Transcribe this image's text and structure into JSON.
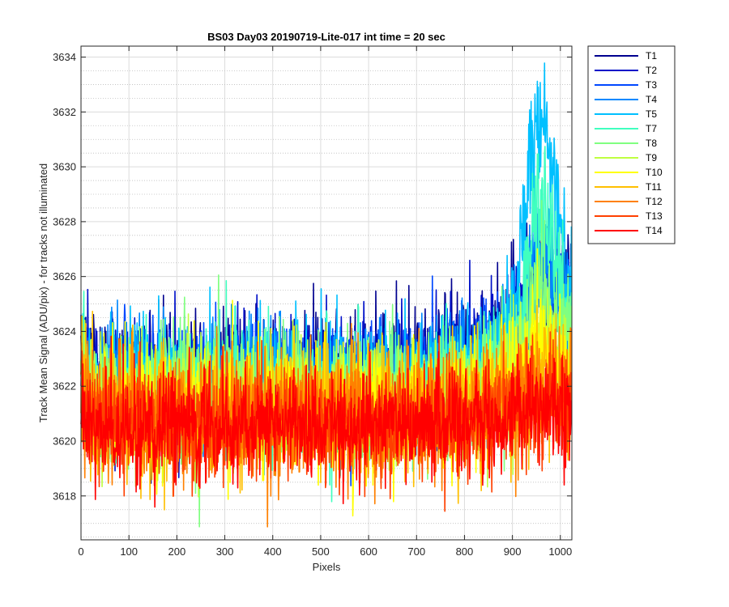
{
  "chart_data": {
    "type": "line",
    "title": "BS03 Day03 20190719-Lite-017 int time = 20 sec",
    "xlabel": "Pixels",
    "ylabel": "Track Mean Signal (ADU/pix) - for tracks not illuminated",
    "xlim": [
      0,
      1024
    ],
    "ylim": [
      3616.4,
      3634.4
    ],
    "xticks": [
      0,
      100,
      200,
      300,
      400,
      500,
      600,
      700,
      800,
      900,
      1000
    ],
    "yticks": [
      3618,
      3620,
      3622,
      3624,
      3626,
      3628,
      3630,
      3632,
      3634
    ],
    "grid": "major and minor",
    "legend_position": "outside-top-right",
    "series": [
      {
        "name": "T1",
        "color": "#00008f",
        "base": 3622.4,
        "amplitude": 1.5,
        "edge_rise": 3.0,
        "peak_rise": 1.2
      },
      {
        "name": "T2",
        "color": "#0010c8",
        "base": 3622.3,
        "amplitude": 1.5,
        "edge_rise": 2.5,
        "peak_rise": 1.5
      },
      {
        "name": "T3",
        "color": "#0048ff",
        "base": 3622.1,
        "amplitude": 1.5,
        "edge_rise": 2.2,
        "peak_rise": 2.0
      },
      {
        "name": "T4",
        "color": "#0088ff",
        "base": 3622.0,
        "amplitude": 1.5,
        "edge_rise": 2.0,
        "peak_rise": 3.0
      },
      {
        "name": "T5",
        "color": "#00c0ff",
        "base": 3622.0,
        "amplitude": 1.5,
        "edge_rise": 2.0,
        "peak_rise": 8.5
      },
      {
        "name": "T7",
        "color": "#40ffbf",
        "base": 3621.8,
        "amplitude": 1.5,
        "edge_rise": 1.8,
        "peak_rise": 5.0
      },
      {
        "name": "T8",
        "color": "#80ff80",
        "base": 3621.6,
        "amplitude": 1.5,
        "edge_rise": 1.6,
        "peak_rise": 2.5
      },
      {
        "name": "T9",
        "color": "#bfff40",
        "base": 3621.4,
        "amplitude": 1.5,
        "edge_rise": 1.4,
        "peak_rise": 1.5
      },
      {
        "name": "T10",
        "color": "#ffff00",
        "base": 3621.2,
        "amplitude": 1.5,
        "edge_rise": 1.2,
        "peak_rise": 1.0
      },
      {
        "name": "T11",
        "color": "#ffbf00",
        "base": 3621.0,
        "amplitude": 1.5,
        "edge_rise": 1.0,
        "peak_rise": 0.8
      },
      {
        "name": "T12",
        "color": "#ff8000",
        "base": 3620.8,
        "amplitude": 1.5,
        "edge_rise": 0.8,
        "peak_rise": 0.6
      },
      {
        "name": "T13",
        "color": "#ff4000",
        "base": 3620.7,
        "amplitude": 1.4,
        "edge_rise": 0.6,
        "peak_rise": 0.4
      },
      {
        "name": "T14",
        "color": "#ff0000",
        "base": 3620.6,
        "amplitude": 1.3,
        "edge_rise": 0.5,
        "peak_rise": 0.3
      }
    ]
  }
}
